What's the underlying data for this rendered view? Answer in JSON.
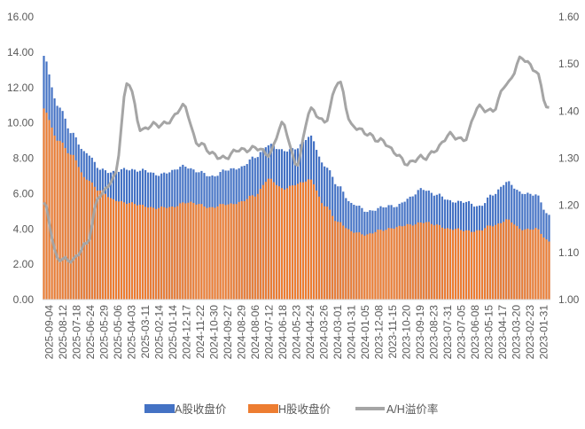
{
  "chart_data": {
    "type": "bar",
    "x_tick_labels": [
      "2025-09-04",
      "2025-08-12",
      "2025-07-18",
      "2025-06-24",
      "2025-05-29",
      "2025-05-06",
      "2025-04-03",
      "2025-03-11",
      "2025-02-14",
      "2025-01-14",
      "2024-12-17",
      "2024-11-22",
      "2024-10-30",
      "2024-09-27",
      "2024-08-29",
      "2024-08-06",
      "2024-07-12",
      "2024-06-18",
      "2024-05-23",
      "2024-04-24",
      "2024-03-26",
      "2024-03-01",
      "2024-01-31",
      "2024-01-05",
      "2023-12-08",
      "2023-11-15",
      "2023-10-20",
      "2023-09-19",
      "2023-08-23",
      "2023-07-31",
      "2023-07-05",
      "2023-06-08",
      "2023-05-15",
      "2023-04-17",
      "2023-03-20",
      "2023-02-23",
      "2023-01-31"
    ],
    "y_left": {
      "min": 0,
      "max": 16,
      "step": 2,
      "tick_labels": [
        "0.00",
        "2.00",
        "4.00",
        "6.00",
        "8.00",
        "10.00",
        "12.00",
        "14.00",
        "16.00"
      ]
    },
    "y_right": {
      "min": 1.0,
      "max": 1.6,
      "step": 0.1,
      "tick_labels": [
        "1.00",
        "1.10",
        "1.20",
        "1.30",
        "1.40",
        "1.50",
        "1.60"
      ]
    },
    "legend_position": "bottom",
    "gridlines": false,
    "series": [
      {
        "name": "A股收盘价",
        "kind": "bar",
        "axis": "left",
        "color": "#4472C4",
        "values": [
          13.7,
          11.0,
          9.4,
          8.3,
          7.4,
          7.2,
          7.4,
          7.3,
          7.1,
          7.2,
          7.6,
          7.2,
          7.0,
          7.3,
          7.5,
          8.0,
          8.8,
          8.4,
          8.6,
          9.2,
          7.6,
          6.4,
          5.4,
          5.0,
          5.2,
          5.3,
          5.7,
          6.3,
          5.9,
          5.6,
          5.5,
          5.3,
          5.9,
          6.7,
          6.0,
          6.0,
          4.7
        ]
      },
      {
        "name": "H股收盘价",
        "kind": "bar",
        "axis": "left",
        "color": "#ED7D31",
        "values": [
          10.8,
          9.0,
          8.2,
          6.8,
          6.2,
          5.6,
          5.5,
          5.3,
          5.2,
          5.2,
          5.5,
          5.4,
          5.2,
          5.4,
          5.5,
          5.9,
          6.8,
          6.3,
          6.5,
          6.8,
          5.3,
          4.4,
          3.8,
          3.7,
          3.9,
          4.1,
          4.2,
          4.4,
          4.2,
          4.0,
          3.9,
          3.9,
          4.2,
          4.5,
          4.0,
          4.0,
          3.3
        ]
      },
      {
        "name": "A/H溢价率",
        "kind": "line",
        "axis": "right",
        "color": "#A5A5A5",
        "values": [
          1.2,
          1.09,
          1.08,
          1.12,
          1.22,
          1.26,
          1.46,
          1.36,
          1.37,
          1.38,
          1.41,
          1.33,
          1.31,
          1.3,
          1.32,
          1.32,
          1.31,
          1.37,
          1.29,
          1.4,
          1.38,
          1.46,
          1.37,
          1.35,
          1.34,
          1.31,
          1.29,
          1.3,
          1.32,
          1.35,
          1.34,
          1.41,
          1.4,
          1.46,
          1.51,
          1.49,
          1.4
        ]
      }
    ]
  }
}
